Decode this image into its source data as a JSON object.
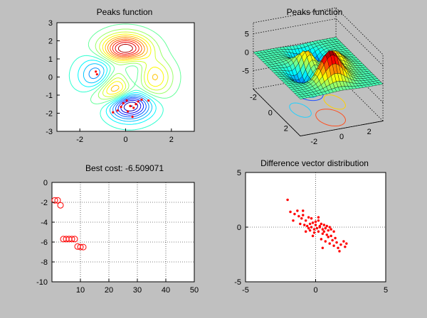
{
  "chart_data": [
    {
      "type": "contour",
      "title": "Peaks function",
      "xlim": [
        -3,
        3
      ],
      "ylim": [
        -3,
        3
      ],
      "xticks": [
        "-2",
        "0",
        "2"
      ],
      "yticks": [
        "3",
        "2",
        "1",
        "0",
        "-1",
        "-2",
        "-3"
      ],
      "grid": false,
      "marker_color": "#ff0000",
      "points": [
        {
          "x": -1.3,
          "y": 0.3
        },
        {
          "x": -1.25,
          "y": 0.15
        },
        {
          "x": -0.35,
          "y": -1.85
        },
        {
          "x": -0.2,
          "y": -1.65
        },
        {
          "x": -0.1,
          "y": -1.45
        },
        {
          "x": 0.05,
          "y": -1.3
        },
        {
          "x": 0.2,
          "y": -1.6
        },
        {
          "x": 0.35,
          "y": -1.7
        },
        {
          "x": 0.45,
          "y": -1.5
        },
        {
          "x": 0.55,
          "y": -1.35
        },
        {
          "x": 0.7,
          "y": -1.25
        },
        {
          "x": 1.0,
          "y": -1.3
        },
        {
          "x": 0.3,
          "y": -2.2
        },
        {
          "x": -0.55,
          "y": -1.95
        },
        {
          "x": 0.1,
          "y": -1.9
        }
      ]
    },
    {
      "type": "surface",
      "title": "Peaks function",
      "zticks": [
        "5",
        "0",
        "-5"
      ],
      "yticks": [
        "2",
        "0",
        "-2"
      ],
      "xticks": [
        "-2",
        "0",
        "2"
      ]
    },
    {
      "type": "scatter",
      "title": "Best cost: -6.509071",
      "xlim": [
        0,
        50
      ],
      "ylim": [
        -10,
        0
      ],
      "xticks": [
        "10",
        "20",
        "30",
        "40",
        "50"
      ],
      "yticks": [
        "0",
        "-2",
        "-4",
        "-6",
        "-8",
        "-10"
      ],
      "grid": true,
      "marker": "circle",
      "marker_color": "#ff0000",
      "series": [
        {
          "x": [
            1,
            2,
            3,
            4,
            5,
            6,
            7,
            8,
            9,
            10,
            11
          ],
          "y": [
            -1.8,
            -1.8,
            -2.3,
            -5.7,
            -5.7,
            -5.7,
            -5.7,
            -5.7,
            -6.45,
            -6.5,
            -6.509071
          ]
        }
      ]
    },
    {
      "type": "scatter",
      "title": "Difference vector distribution",
      "xlim": [
        -5,
        5
      ],
      "ylim": [
        -5,
        5
      ],
      "xticks": [
        "-5",
        "0",
        "5"
      ],
      "yticks": [
        "5",
        "0",
        "-5"
      ],
      "grid": true,
      "marker": "star",
      "marker_color": "#ff0000",
      "series": [
        {
          "x": [
            -1.8,
            -1.5,
            -1.2,
            -1.0,
            -0.9,
            -1.6,
            -1.1,
            -0.7,
            -0.5,
            -0.3,
            -0.8,
            -0.6,
            -0.4,
            -0.2,
            0.0,
            0.2,
            0.4,
            0.6,
            0.8,
            1.0,
            -0.5,
            -0.3,
            -0.1,
            0.1,
            0.3,
            0.5,
            0.7,
            0.9,
            1.1,
            1.3,
            -0.7,
            -0.4,
            -0.1,
            0.2,
            0.5,
            0.8,
            1.1,
            1.4,
            0.0,
            0.3,
            0.6,
            0.9,
            1.2,
            1.5,
            1.8,
            2.0,
            1.6,
            1.3,
            2.2,
            -2.0,
            -1.3,
            -0.9,
            0.4,
            0.7,
            1.0,
            0.2,
            -0.2,
            0.5,
            1.7,
            2.1
          ],
          "y": [
            1.4,
            1.2,
            1.0,
            0.8,
            1.1,
            0.6,
            0.3,
            0.6,
            0.9,
            0.8,
            0.2,
            0.1,
            0.3,
            0.4,
            0.5,
            0.6,
            0.3,
            0.2,
            0.1,
            0.0,
            -0.1,
            0.0,
            -0.2,
            -0.1,
            0.1,
            -0.2,
            -0.1,
            -0.3,
            -0.2,
            -0.4,
            -0.4,
            -0.3,
            -0.5,
            -0.4,
            -0.6,
            -0.7,
            -0.8,
            -1.0,
            0.2,
            0.0,
            -0.4,
            -0.9,
            -1.2,
            -1.4,
            -1.6,
            -1.3,
            -1.9,
            -1.7,
            -1.5,
            2.5,
            1.5,
            1.5,
            -1.1,
            -1.3,
            -1.5,
            0.9,
            -0.8,
            -1.9,
            -2.2,
            -1.8
          ]
        }
      ]
    }
  ]
}
